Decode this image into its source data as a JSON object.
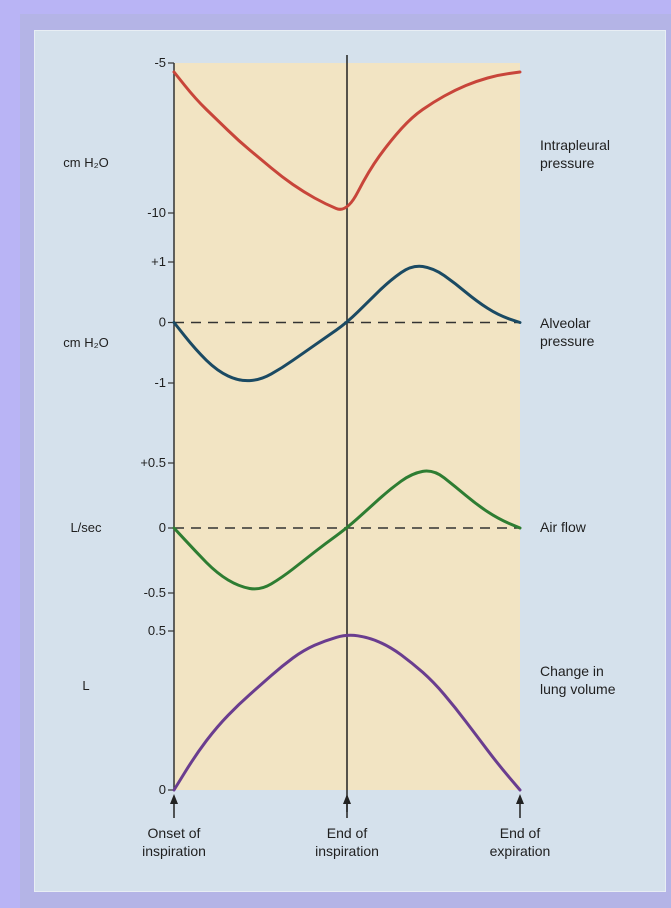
{
  "chart_data": {
    "type": "line",
    "x_labels": [
      {
        "lines": [
          "Onset of",
          "inspiration"
        ],
        "t": 0
      },
      {
        "lines": [
          "End of",
          "inspiration"
        ],
        "t": 2
      },
      {
        "lines": [
          "End of",
          "expiration"
        ],
        "t": 4
      }
    ],
    "colors": {
      "plot_bg": "#f2e4c3",
      "intrapleural": "#c8453a",
      "alveolar": "#1b4a63",
      "airflow": "#2e7d32",
      "volume": "#6a3d8f"
    },
    "panels": [
      {
        "id": "intrapleural",
        "unit_lines": [
          "cm H₂O"
        ],
        "label_lines": [
          "Intrapleural",
          "pressure"
        ],
        "ticks": [
          {
            "v": -5,
            "label": "-5"
          },
          {
            "v": -10,
            "label": "-10"
          }
        ],
        "ylim": [
          -10.5,
          -5
        ],
        "zero_line": false,
        "points": [
          [
            0,
            -5.3
          ],
          [
            0.25,
            -6.2
          ],
          [
            0.5,
            -6.9
          ],
          [
            0.75,
            -7.6
          ],
          [
            1,
            -8.2
          ],
          [
            1.25,
            -8.8
          ],
          [
            1.5,
            -9.3
          ],
          [
            1.75,
            -9.7
          ],
          [
            2,
            -10
          ],
          [
            2.25,
            -8.6
          ],
          [
            2.5,
            -7.6
          ],
          [
            2.75,
            -6.8
          ],
          [
            3,
            -6.3
          ],
          [
            3.25,
            -5.9
          ],
          [
            3.5,
            -5.6
          ],
          [
            3.75,
            -5.4
          ],
          [
            4,
            -5.3
          ]
        ]
      },
      {
        "id": "alveolar",
        "unit_lines": [
          "cm H₂O"
        ],
        "label_lines": [
          "Alveolar",
          "pressure"
        ],
        "ticks": [
          {
            "v": 1,
            "label": "+1"
          },
          {
            "v": 0,
            "label": "0"
          },
          {
            "v": -1,
            "label": "-1"
          }
        ],
        "ylim": [
          -1,
          1
        ],
        "zero_line": true,
        "points": [
          [
            0,
            0
          ],
          [
            0.25,
            -0.45
          ],
          [
            0.5,
            -0.8
          ],
          [
            0.75,
            -0.97
          ],
          [
            1,
            -0.95
          ],
          [
            1.25,
            -0.75
          ],
          [
            1.5,
            -0.5
          ],
          [
            1.75,
            -0.25
          ],
          [
            2,
            0
          ],
          [
            2.25,
            0.35
          ],
          [
            2.5,
            0.7
          ],
          [
            2.75,
            0.95
          ],
          [
            3,
            0.9
          ],
          [
            3.25,
            0.65
          ],
          [
            3.5,
            0.35
          ],
          [
            3.75,
            0.12
          ],
          [
            4,
            0
          ]
        ]
      },
      {
        "id": "airflow",
        "unit_lines": [
          "L/sec"
        ],
        "label_lines": [
          "Air flow"
        ],
        "ticks": [
          {
            "v": 0.5,
            "label": "+0.5"
          },
          {
            "v": 0,
            "label": "0"
          },
          {
            "v": -0.5,
            "label": "-0.5"
          }
        ],
        "ylim": [
          -0.5,
          0.5
        ],
        "zero_line": true,
        "points": [
          [
            0,
            0
          ],
          [
            0.25,
            -0.18
          ],
          [
            0.5,
            -0.35
          ],
          [
            0.75,
            -0.45
          ],
          [
            1,
            -0.48
          ],
          [
            1.25,
            -0.38
          ],
          [
            1.5,
            -0.25
          ],
          [
            1.75,
            -0.12
          ],
          [
            2,
            0
          ],
          [
            2.25,
            0.15
          ],
          [
            2.5,
            0.3
          ],
          [
            2.75,
            0.42
          ],
          [
            3,
            0.45
          ],
          [
            3.25,
            0.32
          ],
          [
            3.5,
            0.18
          ],
          [
            3.75,
            0.07
          ],
          [
            4,
            0
          ]
        ]
      },
      {
        "id": "volume",
        "unit_lines": [
          "L"
        ],
        "label_lines": [
          "Change in",
          "lung volume"
        ],
        "ticks": [
          {
            "v": 0.5,
            "label": "0.5"
          },
          {
            "v": 0,
            "label": "0"
          }
        ],
        "ylim": [
          0,
          0.5
        ],
        "zero_line": false,
        "points": [
          [
            0,
            0
          ],
          [
            0.25,
            0.11
          ],
          [
            0.5,
            0.2
          ],
          [
            0.75,
            0.27
          ],
          [
            1,
            0.33
          ],
          [
            1.25,
            0.39
          ],
          [
            1.5,
            0.44
          ],
          [
            1.75,
            0.47
          ],
          [
            2,
            0.49
          ],
          [
            2.25,
            0.48
          ],
          [
            2.5,
            0.45
          ],
          [
            2.75,
            0.4
          ],
          [
            3,
            0.34
          ],
          [
            3.25,
            0.26
          ],
          [
            3.5,
            0.17
          ],
          [
            3.75,
            0.08
          ],
          [
            4,
            0
          ]
        ]
      }
    ]
  }
}
